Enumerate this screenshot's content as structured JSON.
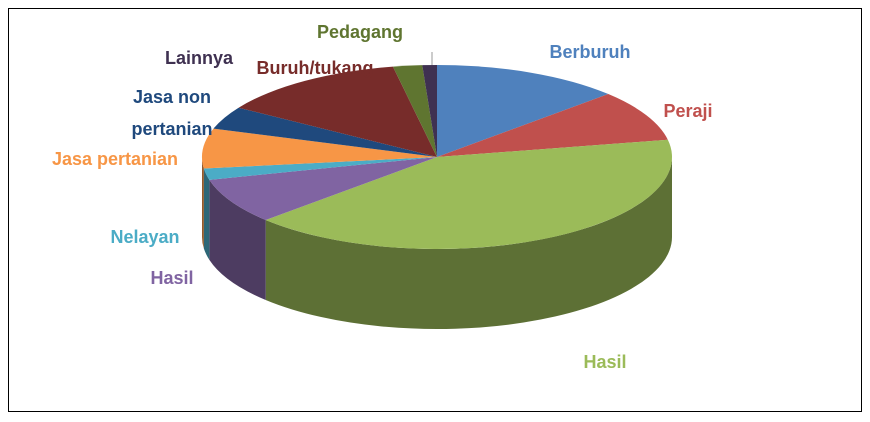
{
  "chart_data": {
    "type": "pie",
    "categories": [
      "Berburuh",
      "Peraji",
      "Hasil",
      "Hasil",
      "Nelayan",
      "Jasa pertanian",
      "Jasa non pertanian",
      "Buruh/tukang",
      "Pedagang",
      "Lainnya"
    ],
    "values": [
      13,
      9,
      41,
      8,
      2,
      7,
      4,
      13,
      2,
      1
    ],
    "colors": [
      "#4f81bd",
      "#c0504d",
      "#9bbb59",
      "#8064a2",
      "#4bacc6",
      "#f79646",
      "#1f497d",
      "#772c2a",
      "#5f7530",
      "#3f3151"
    ]
  }
}
